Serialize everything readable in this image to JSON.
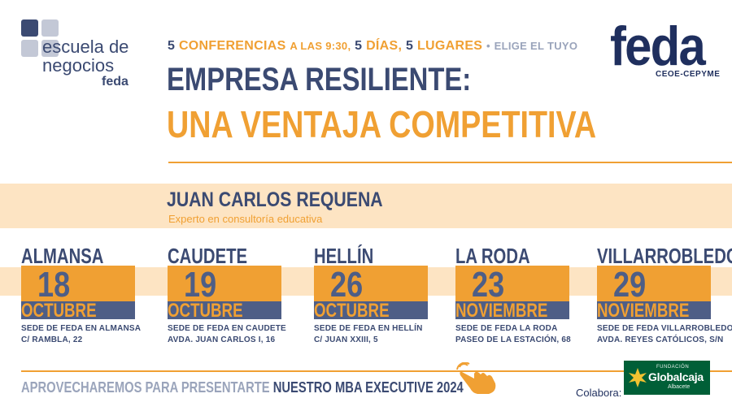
{
  "logo": {
    "line1": "escuela de",
    "line2": "negocios",
    "line3": "feda",
    "square_colors": [
      "#3b4a72",
      "#c3c8d6",
      "#c3c8d6",
      "#c3c8d6"
    ]
  },
  "brand": {
    "name": "feda",
    "sub": "CEOE-CEPYME"
  },
  "tagline": {
    "n1": "5",
    "w1": "CONFERENCIAS",
    "t1": "A LAS 9:30,",
    "n2": "5",
    "w2": "DÍAS,",
    "n3": "5",
    "w3": "LUGARES",
    "sep": "•",
    "end": "ELIGE EL TUYO"
  },
  "title": {
    "line1": "EMPRESA RESILIENTE:",
    "line2": "UNA VENTAJA COMPETITIVA"
  },
  "speaker": {
    "name": "JUAN CARLOS REQUENA",
    "role": "Experto en consultoría educativa"
  },
  "venues": [
    {
      "city": "ALMANSA",
      "day": "18",
      "month": "OCTUBRE",
      "addr1": "SEDE DE FEDA EN ALMANSA",
      "addr2": "C/ RAMBLA, 22"
    },
    {
      "city": "CAUDETE",
      "day": "19",
      "month": "OCTUBRE",
      "addr1": "SEDE DE FEDA EN CAUDETE",
      "addr2": "AVDA. JUAN CARLOS I, 16"
    },
    {
      "city": "HELLÍN",
      "day": "26",
      "month": "OCTUBRE",
      "addr1": "SEDE DE FEDA EN HELLÍN",
      "addr2": "C/ JUAN XXIII, 5"
    },
    {
      "city": "LA RODA",
      "day": "23",
      "month": "NOVIEMBRE",
      "addr1": "SEDE DE FEDA LA RODA",
      "addr2": "PASEO DE LA ESTACIÓN, 68"
    },
    {
      "city": "VILLARROBLEDO",
      "day": "29",
      "month": "NOVIEMBRE",
      "addr1": "SEDE DE FEDA VILLARROBLEDO",
      "addr2": "AVDA. REYES CATÓLICOS, S/N"
    }
  ],
  "footer": {
    "text_grey": "APROVECHAREMOS PARA PRESENTARTE",
    "text_bold": "NUESTRO MBA EXECUTIVE 2024",
    "icon": "pointing-hand-icon",
    "colabora": "Colabora:",
    "sponsor": {
      "top": "FUNDACIÓN",
      "name": "Globalcaja",
      "sub": "Albacete"
    }
  },
  "colors": {
    "navy": "#3b4a72",
    "orange": "#f0a033",
    "band": "#fde4c3",
    "sponsor_green": "#005f37"
  }
}
